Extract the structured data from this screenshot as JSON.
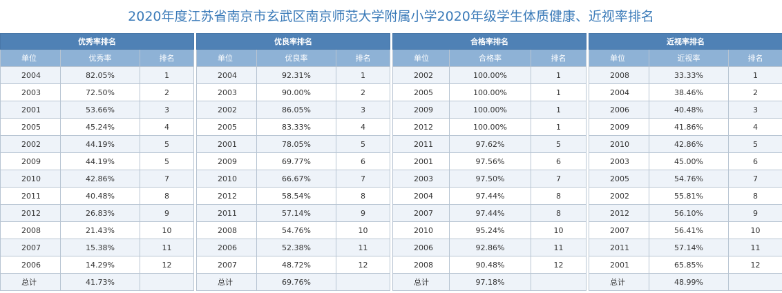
{
  "title": "2020年度江苏省南京市玄武区南京师范大学附属小学2020年级学生体质健康、近视率排名",
  "tables": [
    {
      "caption": "优秀率排名",
      "headers": [
        "单位",
        "优秀率",
        "排名"
      ],
      "rows": [
        [
          "2004",
          "82.05%",
          "1"
        ],
        [
          "2003",
          "72.50%",
          "2"
        ],
        [
          "2001",
          "53.66%",
          "3"
        ],
        [
          "2005",
          "45.24%",
          "4"
        ],
        [
          "2002",
          "44.19%",
          "5"
        ],
        [
          "2009",
          "44.19%",
          "5"
        ],
        [
          "2010",
          "42.86%",
          "7"
        ],
        [
          "2011",
          "40.48%",
          "8"
        ],
        [
          "2012",
          "26.83%",
          "9"
        ],
        [
          "2008",
          "21.43%",
          "10"
        ],
        [
          "2007",
          "15.38%",
          "11"
        ],
        [
          "2006",
          "14.29%",
          "12"
        ]
      ],
      "total": [
        "总计",
        "41.73%",
        ""
      ]
    },
    {
      "caption": "优良率排名",
      "headers": [
        "单位",
        "优良率",
        "排名"
      ],
      "rows": [
        [
          "2004",
          "92.31%",
          "1"
        ],
        [
          "2003",
          "90.00%",
          "2"
        ],
        [
          "2002",
          "86.05%",
          "3"
        ],
        [
          "2005",
          "83.33%",
          "4"
        ],
        [
          "2001",
          "78.05%",
          "5"
        ],
        [
          "2009",
          "69.77%",
          "6"
        ],
        [
          "2010",
          "66.67%",
          "7"
        ],
        [
          "2012",
          "58.54%",
          "8"
        ],
        [
          "2011",
          "57.14%",
          "9"
        ],
        [
          "2008",
          "54.76%",
          "10"
        ],
        [
          "2006",
          "52.38%",
          "11"
        ],
        [
          "2007",
          "48.72%",
          "12"
        ]
      ],
      "total": [
        "总计",
        "69.76%",
        ""
      ]
    },
    {
      "caption": "合格率排名",
      "headers": [
        "单位",
        "合格率",
        "排名"
      ],
      "rows": [
        [
          "2002",
          "100.00%",
          "1"
        ],
        [
          "2005",
          "100.00%",
          "1"
        ],
        [
          "2009",
          "100.00%",
          "1"
        ],
        [
          "2012",
          "100.00%",
          "1"
        ],
        [
          "2011",
          "97.62%",
          "5"
        ],
        [
          "2001",
          "97.56%",
          "6"
        ],
        [
          "2003",
          "97.50%",
          "7"
        ],
        [
          "2004",
          "97.44%",
          "8"
        ],
        [
          "2007",
          "97.44%",
          "8"
        ],
        [
          "2010",
          "95.24%",
          "10"
        ],
        [
          "2006",
          "92.86%",
          "11"
        ],
        [
          "2008",
          "90.48%",
          "12"
        ]
      ],
      "total": [
        "总计",
        "97.18%",
        ""
      ]
    },
    {
      "caption": "近视率排名",
      "headers": [
        "单位",
        "近视率",
        "排名"
      ],
      "rows": [
        [
          "2008",
          "33.33%",
          "1"
        ],
        [
          "2004",
          "38.46%",
          "2"
        ],
        [
          "2006",
          "40.48%",
          "3"
        ],
        [
          "2009",
          "41.86%",
          "4"
        ],
        [
          "2010",
          "42.86%",
          "5"
        ],
        [
          "2003",
          "45.00%",
          "6"
        ],
        [
          "2005",
          "54.76%",
          "7"
        ],
        [
          "2002",
          "55.81%",
          "8"
        ],
        [
          "2012",
          "56.10%",
          "9"
        ],
        [
          "2007",
          "56.41%",
          "10"
        ],
        [
          "2011",
          "57.14%",
          "11"
        ],
        [
          "2001",
          "65.85%",
          "12"
        ]
      ],
      "total": [
        "总计",
        "48.99%",
        ""
      ]
    }
  ],
  "colors": {
    "title": "#3a7ab8",
    "caption_bg": "#4f81b5",
    "header_bg": "#8eb2d6",
    "row_alt_bg": "#eef3f9"
  }
}
